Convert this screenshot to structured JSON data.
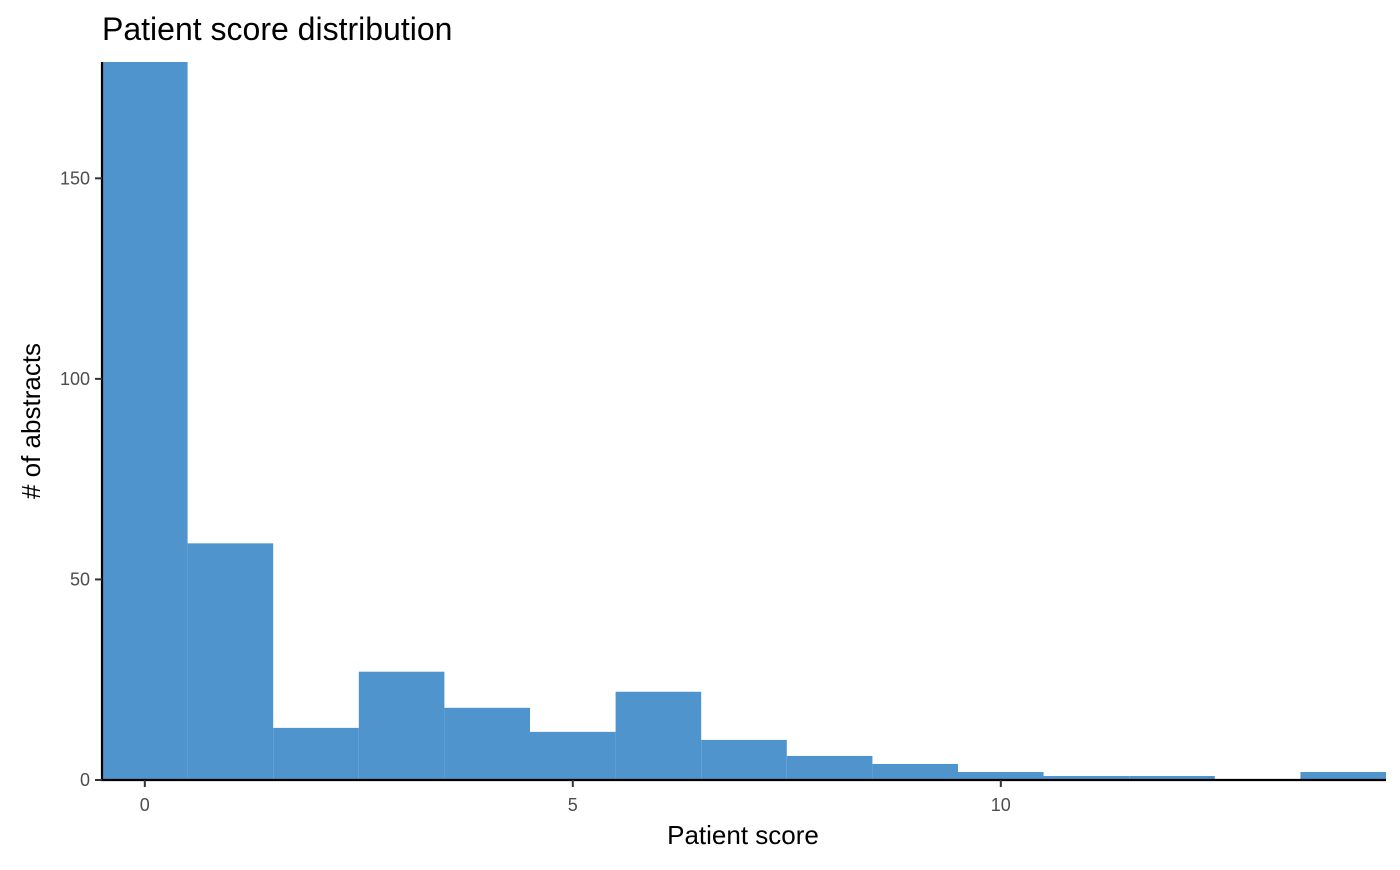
{
  "chart_data": {
    "type": "bar",
    "title": "Patient score distribution",
    "xlabel": "Patient score",
    "ylabel": "# of abstracts",
    "x_ticks": [
      0,
      5,
      10
    ],
    "y_ticks": [
      0,
      50,
      100,
      150
    ],
    "xlim": [
      -0.5,
      14.5
    ],
    "ylim": [
      0,
      179
    ],
    "bin_width": 1,
    "bins": [
      {
        "x": 0,
        "count": 179
      },
      {
        "x": 1,
        "count": 59
      },
      {
        "x": 2,
        "count": 13
      },
      {
        "x": 3,
        "count": 27
      },
      {
        "x": 4,
        "count": 18
      },
      {
        "x": 5,
        "count": 12
      },
      {
        "x": 6,
        "count": 22
      },
      {
        "x": 7,
        "count": 10
      },
      {
        "x": 8,
        "count": 6
      },
      {
        "x": 9,
        "count": 4
      },
      {
        "x": 10,
        "count": 2
      },
      {
        "x": 11,
        "count": 1
      },
      {
        "x": 12,
        "count": 1
      },
      {
        "x": 13,
        "count": 0
      },
      {
        "x": 14,
        "count": 2
      }
    ],
    "bar_color": "#4f94cd",
    "grid": false,
    "legend": "none"
  }
}
